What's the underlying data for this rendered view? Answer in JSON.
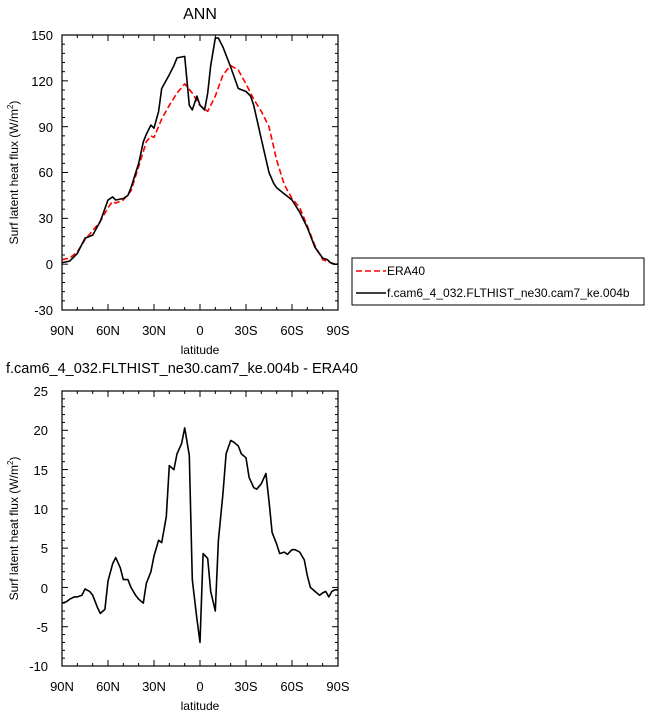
{
  "chart_data": [
    {
      "type": "line",
      "title": "ANN",
      "ylabel": "Surf latent heat flux (W/m²)",
      "ylabel_main": "Surf latent heat flux (W/m",
      "ylabel_sup": "2",
      "ylabel_tail": ")",
      "xlabel": "latitude",
      "xlim": [
        90,
        -90
      ],
      "ylim": [
        -30,
        150
      ],
      "xticks": [
        90,
        60,
        30,
        0,
        -30,
        -60,
        -90
      ],
      "xtick_labels": [
        "90N",
        "60N",
        "30N",
        "0",
        "30S",
        "60S",
        "90S"
      ],
      "yticks": [
        -30,
        0,
        30,
        60,
        90,
        120,
        150
      ],
      "ytick_labels": [
        "-30",
        "0",
        "30",
        "60",
        "90",
        "120",
        "150"
      ],
      "legend": "right, outside plot",
      "series": [
        {
          "name": "ERA40",
          "color": "#ff0000",
          "dash": "dashed",
          "x": [
            90,
            85,
            80,
            75,
            70,
            65,
            60,
            57,
            55,
            50,
            45,
            40,
            35,
            32,
            30,
            25,
            20,
            15,
            10,
            5,
            2,
            0,
            -5,
            -10,
            -15,
            -20,
            -25,
            -30,
            -35,
            -40,
            -45,
            -50,
            -55,
            -60,
            -65,
            -70,
            -75,
            -80,
            -85,
            -88,
            -90
          ],
          "y": [
            3,
            4,
            8,
            16,
            22,
            28,
            37,
            41,
            40,
            42,
            48,
            64,
            80,
            84,
            83,
            95,
            104,
            112,
            118,
            112,
            107,
            104,
            100,
            110,
            124,
            130,
            127,
            118,
            108,
            100,
            90,
            68,
            52,
            43,
            37,
            25,
            12,
            3,
            1,
            0,
            0
          ]
        },
        {
          "name": "f.cam6_4_032.FLTHIST_ne30.cam7_ke.004b",
          "color": "#000000",
          "dash": "solid",
          "x": [
            90,
            85,
            80,
            75,
            70,
            65,
            60,
            57,
            55,
            50,
            47,
            45,
            40,
            37,
            35,
            32,
            30,
            27,
            25,
            20,
            17,
            15,
            10,
            7,
            5,
            2,
            0,
            -3,
            -5,
            -7,
            -10,
            -12,
            -15,
            -20,
            -25,
            -30,
            -33,
            -35,
            -40,
            -45,
            -48,
            -50,
            -55,
            -60,
            -65,
            -70,
            -75,
            -80,
            -83,
            -85,
            -88,
            -90
          ],
          "y": [
            1,
            2,
            7,
            17,
            19,
            28,
            42,
            44,
            42,
            43,
            45,
            50,
            66,
            80,
            85,
            91,
            89,
            100,
            115,
            124,
            130,
            135,
            136,
            104,
            101,
            110,
            104,
            101,
            112,
            130,
            148,
            148,
            142,
            129,
            115,
            113,
            110,
            104,
            82,
            60,
            53,
            50,
            46,
            42,
            34,
            24,
            11,
            4,
            3,
            1,
            0,
            0
          ]
        }
      ]
    },
    {
      "type": "line",
      "title": "f.cam6_4_032.FLTHIST_ne30.cam7_ke.004b - ERA40",
      "ylabel": "Surf latent heat flux (W/m²)",
      "ylabel_main": "Surf latent heat flux (W/m",
      "ylabel_sup": "2",
      "ylabel_tail": ")",
      "xlabel": "latitude",
      "xlim": [
        90,
        -90
      ],
      "ylim": [
        -10,
        25
      ],
      "xticks": [
        90,
        60,
        30,
        0,
        -30,
        -60,
        -90
      ],
      "xtick_labels": [
        "90N",
        "60N",
        "30N",
        "0",
        "30S",
        "60S",
        "90S"
      ],
      "yticks": [
        -10,
        -5,
        0,
        5,
        10,
        15,
        20,
        25
      ],
      "ytick_labels": [
        "-10",
        "-5",
        "0",
        "5",
        "10",
        "15",
        "20",
        "25"
      ],
      "series": [
        {
          "color": "#000000",
          "dash": "solid",
          "x": [
            90,
            87,
            85,
            82,
            80,
            77,
            75,
            72,
            70,
            67,
            65,
            62,
            60,
            57,
            55,
            52,
            50,
            47,
            45,
            42,
            40,
            37,
            35,
            32,
            30,
            27,
            25,
            22,
            20,
            17,
            15,
            12,
            10,
            7,
            5,
            2,
            0,
            -2,
            -5,
            -7,
            -10,
            -12,
            -15,
            -17,
            -20,
            -22,
            -25,
            -27,
            -30,
            -32,
            -35,
            -37,
            -40,
            -43,
            -45,
            -47,
            -50,
            -52,
            -55,
            -57,
            -60,
            -62,
            -65,
            -68,
            -70,
            -72,
            -75,
            -78,
            -80,
            -82,
            -84,
            -86,
            -88,
            -90
          ],
          "y": [
            -2,
            -1.8,
            -1.5,
            -1.2,
            -1.2,
            -1,
            -0.2,
            -0.5,
            -1,
            -2.5,
            -3.3,
            -2.8,
            0.8,
            3,
            3.8,
            2.5,
            1,
            1,
            0,
            -1,
            -1.5,
            -2,
            0.5,
            2,
            4,
            6,
            5.7,
            9,
            15.5,
            15,
            17,
            18.3,
            20.3,
            16.8,
            1,
            -4,
            -7,
            4.3,
            3.7,
            -0.5,
            -3,
            6,
            12,
            17,
            18.7,
            18.5,
            18,
            17,
            16.5,
            14,
            12.7,
            12.5,
            13.2,
            14.5,
            11,
            7,
            5.5,
            4.3,
            4.5,
            4.2,
            4.8,
            4.8,
            4.5,
            3.5,
            1.5,
            0,
            -0.5,
            -1,
            -0.7,
            -0.5,
            -1.2,
            -0.5,
            -0.3,
            -0.3
          ]
        }
      ]
    }
  ]
}
